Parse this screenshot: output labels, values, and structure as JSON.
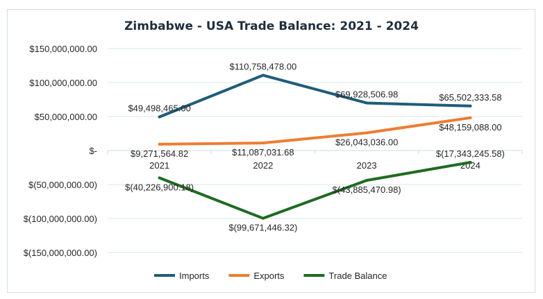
{
  "chart_data": {
    "type": "line",
    "title": "Zimbabwe - USA Trade Balance: 2021 - 2024",
    "categories": [
      "2021",
      "2022",
      "2023",
      "2024"
    ],
    "ylim": [
      -150000000,
      150000000
    ],
    "yticks": [
      150000000,
      100000000,
      50000000,
      0,
      -50000000,
      -100000000,
      -150000000
    ],
    "ytick_labels": [
      "$150,000,000.00",
      "$100,000,000.00",
      "$50,000,000.00",
      "$-",
      "$(50,000,000.00)",
      "$(100,000,000.00)",
      "$(150,000,000.00)"
    ],
    "grid": true,
    "legend": "bottom",
    "series": [
      {
        "name": "Imports",
        "color": "#1f5c7a",
        "values": [
          49498465.0,
          110758478.0,
          69928506.98,
          65502333.58
        ],
        "labels": [
          "$49,498,465.00",
          "$110,758,478.00",
          "$69,928,506.98",
          "$65,502,333.58"
        ]
      },
      {
        "name": "Exports",
        "color": "#ed7d31",
        "values": [
          9271564.82,
          11087031.68,
          26043036.0,
          48159088.0
        ],
        "labels": [
          "$9,271,564.82",
          "$11,087,031.68",
          "$26,043,036.00",
          "$48,159,088.00"
        ]
      },
      {
        "name": "Trade Balance",
        "color": "#1e6b22",
        "values": [
          -40226900.18,
          -99671446.32,
          -43885470.98,
          -17343245.58
        ],
        "labels": [
          "$(40,226,900.18)",
          "$(99,671,446.32)",
          "$(43,885,470.98)",
          "$(17,343,245.58)"
        ]
      }
    ]
  }
}
